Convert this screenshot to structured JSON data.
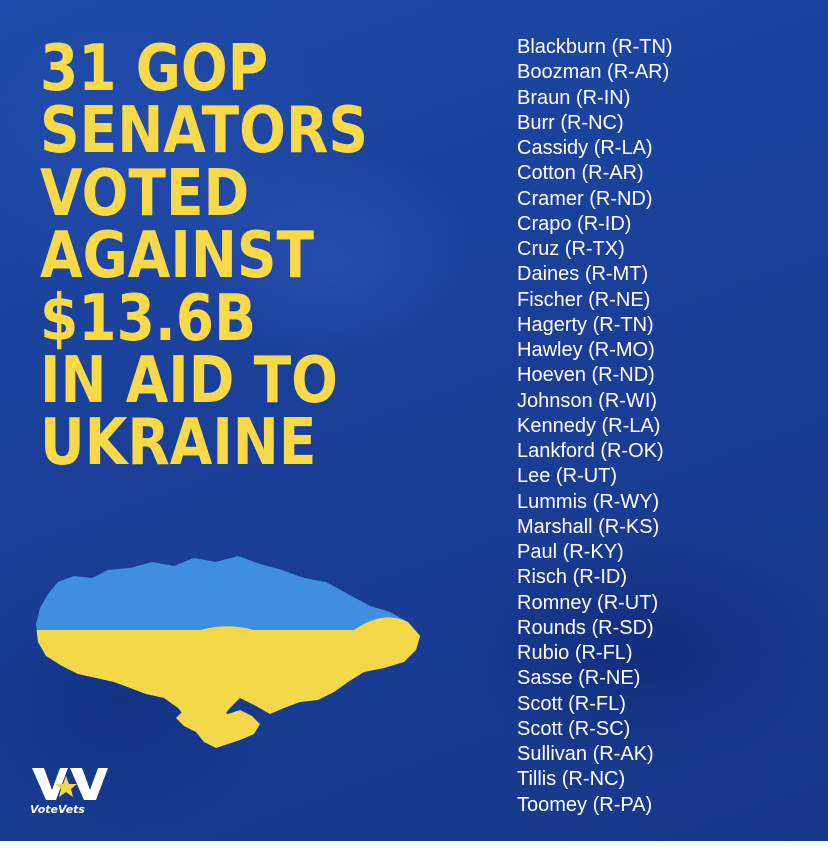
{
  "headline": {
    "lines": [
      "31 GOP",
      "SENATORS",
      "VOTED",
      "AGAINST",
      "$13.6B",
      "IN AID TO",
      "UKRAINE"
    ]
  },
  "senators": [
    "Blackburn (R-TN)",
    "Boozman (R-AR)",
    "Braun (R-IN)",
    "Burr (R-NC)",
    "Cassidy (R-LA)",
    "Cotton (R-AR)",
    "Cramer (R-ND)",
    "Crapo (R-ID)",
    "Cruz (R-TX)",
    "Daines (R-MT)",
    "Fischer (R-NE)",
    "Hagerty (R-TN)",
    "Hawley (R-MO)",
    "Hoeven (R-ND)",
    "Johnson (R-WI)",
    "Kennedy (R-LA)",
    "Lankford (R-OK)",
    "Lee (R-UT)",
    "Lummis (R-WY)",
    "Marshall (R-KS)",
    "Paul (R-KY)",
    "Risch (R-ID)",
    "Romney (R-UT)",
    "Rounds (R-SD)",
    "Rubio (R-FL)",
    "Sasse (R-NE)",
    "Scott (R-FL)",
    "Scott (R-SC)",
    "Sullivan (R-AK)",
    "Tillis (R-NC)",
    "Toomey (R-PA)"
  ],
  "logo": {
    "text": "VoteVets"
  },
  "colors": {
    "background": "#1a3f98",
    "headline": "#f7d94a",
    "flag_blue": "#3f8fe0",
    "flag_yellow": "#f5d84a",
    "text": "#ffffff"
  },
  "icons": {
    "map": "ukraine-flag-map-icon",
    "logo": "votevets-logo-icon"
  }
}
